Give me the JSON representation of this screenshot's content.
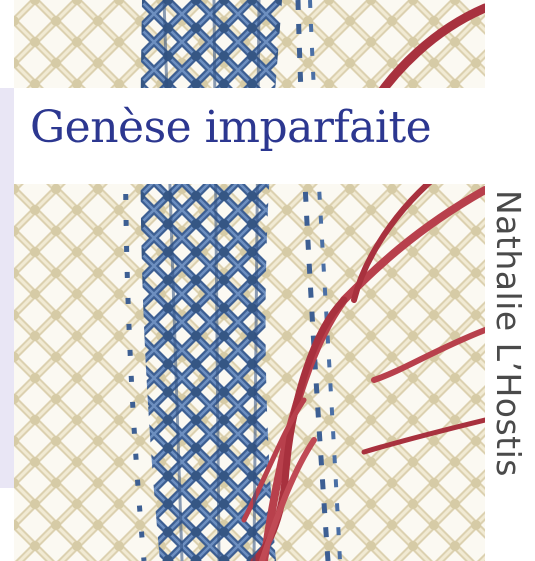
{
  "cover": {
    "title": "Genèse imparfaite",
    "author": "Nathalie L’Hostis"
  },
  "colors": {
    "title": "#2c3790",
    "author": "#4a4a4a",
    "cord_cream": "#e8dfc3",
    "cord_blue": "#4a6fa5",
    "cord_red": "#b8404c",
    "background": "#ffffff",
    "accent_strip": "#e9e6f5"
  }
}
